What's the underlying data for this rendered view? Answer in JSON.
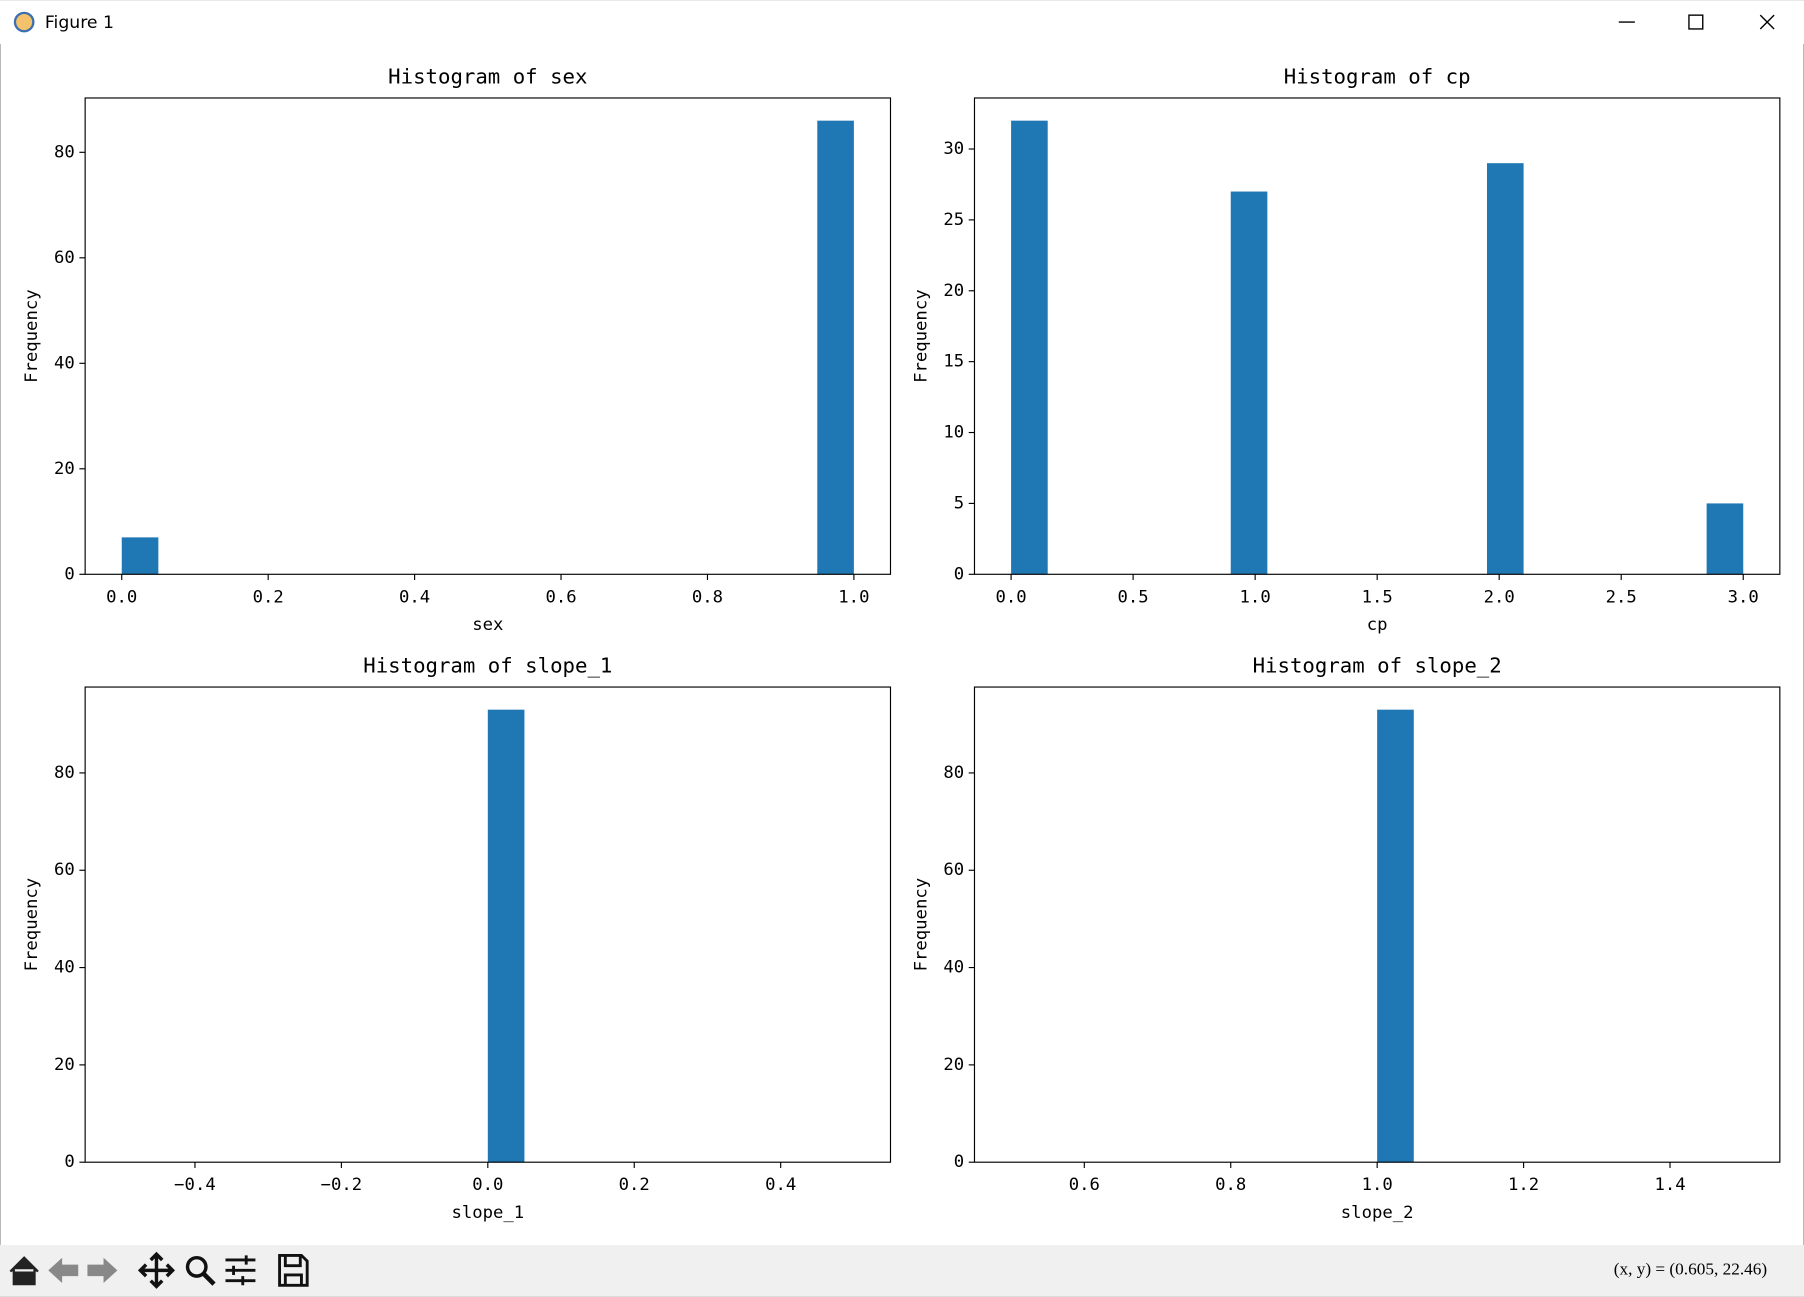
{
  "window": {
    "title": "Figure 1",
    "status": "(x, y) = (0.605, 22.46)"
  },
  "chart_data": [
    {
      "type": "histogram",
      "title": "Histogram of sex",
      "xlabel": "sex",
      "ylabel": "Frequency",
      "color": "#1f77b4",
      "bins": [
        0,
        0.05,
        0.1,
        0.15,
        0.2,
        0.25,
        0.3,
        0.35,
        0.4,
        0.45,
        0.5,
        0.55,
        0.6,
        0.65,
        0.7,
        0.75,
        0.8,
        0.85,
        0.9,
        0.95,
        1.0
      ],
      "counts": [
        7,
        0,
        0,
        0,
        0,
        0,
        0,
        0,
        0,
        0,
        0,
        0,
        0,
        0,
        0,
        0,
        0,
        0,
        0,
        86
      ],
      "xlim": [
        -0.05,
        1.05
      ],
      "ylim": [
        0,
        90.3
      ],
      "xticks": [
        {
          "value": 0,
          "label": "0.0"
        },
        0.2,
        0.4,
        0.6,
        0.8,
        {
          "value": 1,
          "label": "1.0"
        }
      ],
      "yticks": [
        0,
        20,
        40,
        60,
        80
      ]
    },
    {
      "type": "histogram",
      "title": "Histogram of cp",
      "xlabel": "cp",
      "ylabel": "Frequency",
      "color": "#1f77b4",
      "bins": [
        0,
        0.15,
        0.3,
        0.45,
        0.6,
        0.75,
        0.9,
        1.05,
        1.2,
        1.35,
        1.5,
        1.65,
        1.8,
        1.95,
        2.1,
        2.25,
        2.4,
        2.55,
        2.7,
        2.85,
        3.0
      ],
      "counts": [
        32,
        0,
        0,
        0,
        0,
        0,
        27,
        0,
        0,
        0,
        0,
        0,
        0,
        29,
        0,
        0,
        0,
        0,
        0,
        5
      ],
      "xlim": [
        -0.15,
        3.15
      ],
      "ylim": [
        0,
        33.6
      ],
      "xticks": [
        {
          "value": 0,
          "label": "0.0"
        },
        0.5,
        {
          "value": 1,
          "label": "1.0"
        },
        1.5,
        {
          "value": 2,
          "label": "2.0"
        },
        2.5,
        {
          "value": 3,
          "label": "3.0"
        }
      ],
      "yticks": [
        0,
        5,
        10,
        15,
        20,
        25,
        30
      ]
    },
    {
      "type": "histogram",
      "title": "Histogram of slope_1",
      "xlabel": "slope_1",
      "ylabel": "Frequency",
      "color": "#1f77b4",
      "bins": [
        -0.5,
        -0.45,
        -0.4,
        -0.35,
        -0.3,
        -0.25,
        -0.2,
        -0.15,
        -0.1,
        -0.05,
        0,
        0.05,
        0.1,
        0.15,
        0.2,
        0.25,
        0.3,
        0.35,
        0.4,
        0.45,
        0.5
      ],
      "counts": [
        0,
        0,
        0,
        0,
        0,
        0,
        0,
        0,
        0,
        0,
        93,
        0,
        0,
        0,
        0,
        0,
        0,
        0,
        0,
        0
      ],
      "xlim": [
        -0.55,
        0.55
      ],
      "ylim": [
        0,
        97.65
      ],
      "xticks": [
        {
          "value": -0.4,
          "label": "−0.4"
        },
        {
          "value": -0.2,
          "label": "−0.2"
        },
        {
          "value": 0,
          "label": "0.0"
        },
        0.2,
        0.4
      ],
      "yticks": [
        0,
        20,
        40,
        60,
        80
      ]
    },
    {
      "type": "histogram",
      "title": "Histogram of slope_2",
      "xlabel": "slope_2",
      "ylabel": "Frequency",
      "color": "#1f77b4",
      "bins": [
        0.5,
        0.55,
        0.6,
        0.65,
        0.7,
        0.75,
        0.8,
        0.85,
        0.9,
        0.95,
        1.0,
        1.05,
        1.1,
        1.15,
        1.2,
        1.25,
        1.3,
        1.35,
        1.4,
        1.45,
        1.5
      ],
      "counts": [
        0,
        0,
        0,
        0,
        0,
        0,
        0,
        0,
        0,
        0,
        93,
        0,
        0,
        0,
        0,
        0,
        0,
        0,
        0,
        0
      ],
      "xlim": [
        0.45,
        1.55
      ],
      "ylim": [
        0,
        97.65
      ],
      "xticks": [
        0.6,
        0.8,
        {
          "value": 1,
          "label": "1.0"
        },
        1.2,
        1.4
      ],
      "yticks": [
        0,
        20,
        40,
        60,
        80
      ]
    }
  ]
}
